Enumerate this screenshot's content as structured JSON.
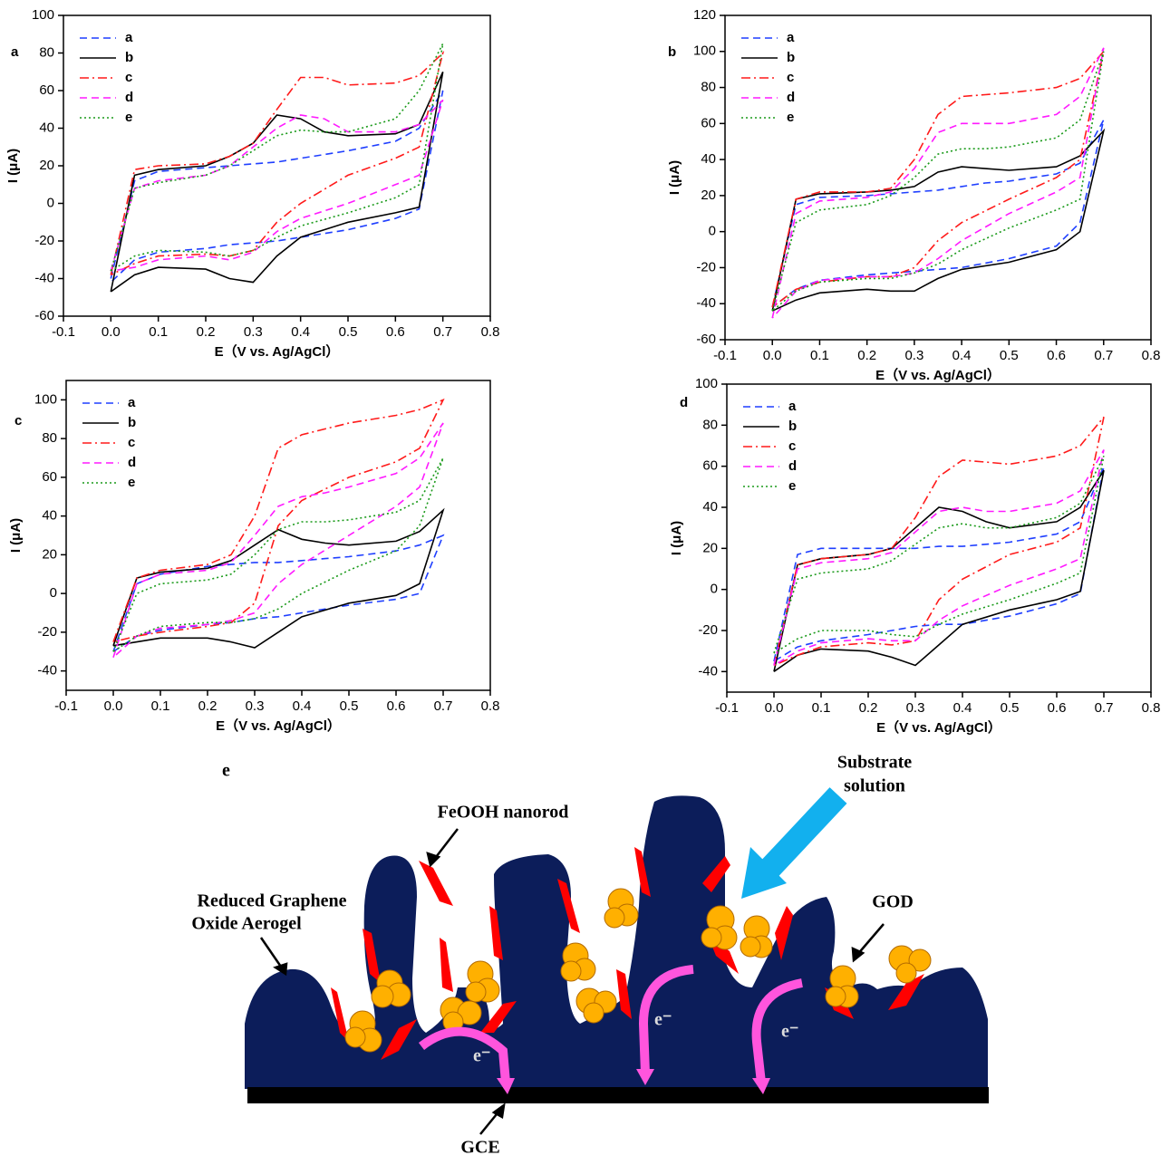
{
  "chart_data": [
    {
      "type": "line",
      "label": "a",
      "xlabel": "E（V vs. Ag/AgCl）",
      "ylabel": "I (μA)",
      "x": [
        0,
        0.05,
        0.1,
        0.2,
        0.25,
        0.3,
        0.35,
        0.4,
        0.45,
        0.5,
        0.6,
        0.65,
        0.7,
        0.65,
        0.6,
        0.5,
        0.4,
        0.35,
        0.3,
        0.25,
        0.2,
        0.1,
        0.05,
        0
      ],
      "xlim": [
        -0.1,
        0.8
      ],
      "xticks": [
        -0.1,
        {
          "value": 0,
          "label": "0.0"
        },
        0.1,
        0.2,
        0.3,
        0.4,
        0.5,
        0.6,
        0.7,
        0.8
      ],
      "ylim": [
        -60,
        100
      ],
      "yticks": [
        -60,
        -40,
        -20,
        0,
        20,
        40,
        60,
        80,
        100
      ],
      "legend": "upper-left",
      "series": [
        {
          "name": "a",
          "color": "#1f3fff",
          "dash": "dashed",
          "values": [
            -40,
            12,
            17,
            19,
            20,
            21,
            22,
            24,
            26,
            28,
            33,
            40,
            60,
            -3,
            -8,
            -14,
            -18,
            -20,
            -21,
            -22,
            -24,
            -26,
            -30,
            -42
          ]
        },
        {
          "name": "b",
          "color": "#000000",
          "dash": "solid",
          "values": [
            -47,
            15,
            18,
            20,
            25,
            32,
            47,
            45,
            38,
            36,
            37,
            42,
            70,
            -2,
            -5,
            -10,
            -18,
            -28,
            -42,
            -40,
            -35,
            -34,
            -38,
            -47
          ]
        },
        {
          "name": "c",
          "color": "#ff1a1a",
          "dash": "dashdot",
          "values": [
            -38,
            18,
            20,
            21,
            25,
            32,
            50,
            67,
            67,
            63,
            64,
            68,
            80,
            30,
            24,
            15,
            0,
            -10,
            -25,
            -28,
            -27,
            -28,
            -32,
            -38
          ]
        },
        {
          "name": "d",
          "color": "#ff1aff",
          "dash": "dashed",
          "values": [
            -36,
            8,
            12,
            15,
            20,
            30,
            40,
            47,
            45,
            38,
            38,
            42,
            55,
            15,
            10,
            0,
            -8,
            -15,
            -26,
            -30,
            -28,
            -30,
            -34,
            -36
          ]
        },
        {
          "name": "e",
          "color": "#1a9a1a",
          "dash": "dotted",
          "values": [
            -36,
            8,
            11,
            15,
            20,
            28,
            36,
            39,
            38,
            38,
            45,
            60,
            85,
            10,
            3,
            -5,
            -12,
            -18,
            -25,
            -28,
            -26,
            -25,
            -28,
            -36
          ]
        }
      ]
    },
    {
      "type": "line",
      "label": "b",
      "xlabel": "E（V vs. Ag/AgCl）",
      "ylabel": "I (μA)",
      "x": [
        0,
        0.05,
        0.1,
        0.2,
        0.25,
        0.3,
        0.35,
        0.4,
        0.45,
        0.5,
        0.6,
        0.65,
        0.7,
        0.65,
        0.6,
        0.5,
        0.4,
        0.35,
        0.3,
        0.25,
        0.2,
        0.1,
        0.05,
        0
      ],
      "xlim": [
        -0.1,
        0.8
      ],
      "xticks": [
        -0.1,
        {
          "value": 0,
          "label": "0.0"
        },
        0.1,
        0.2,
        0.3,
        0.4,
        0.5,
        0.6,
        0.7,
        0.8
      ],
      "ylim": [
        -60,
        120
      ],
      "yticks": [
        -60,
        -40,
        -20,
        0,
        20,
        40,
        60,
        80,
        100,
        120
      ],
      "legend": "upper-left",
      "series": [
        {
          "name": "a",
          "color": "#1f3fff",
          "dash": "dashed",
          "values": [
            -42,
            15,
            19,
            20,
            21,
            22,
            23,
            25,
            27,
            28,
            32,
            38,
            62,
            5,
            -8,
            -15,
            -20,
            -21,
            -22,
            -23,
            -24,
            -27,
            -32,
            -42
          ]
        },
        {
          "name": "b",
          "color": "#000000",
          "dash": "solid",
          "values": [
            -44,
            18,
            21,
            22,
            23,
            25,
            33,
            36,
            35,
            34,
            36,
            42,
            56,
            0,
            -10,
            -17,
            -21,
            -26,
            -33,
            -33,
            -32,
            -34,
            -38,
            -44
          ]
        },
        {
          "name": "c",
          "color": "#ff1a1a",
          "dash": "dashdot",
          "values": [
            -42,
            18,
            22,
            22,
            24,
            40,
            65,
            75,
            76,
            77,
            80,
            85,
            100,
            40,
            30,
            18,
            5,
            -5,
            -20,
            -25,
            -25,
            -28,
            -32,
            -42
          ]
        },
        {
          "name": "d",
          "color": "#ff1aff",
          "dash": "dashed",
          "values": [
            -48,
            10,
            17,
            19,
            22,
            35,
            55,
            60,
            60,
            60,
            65,
            75,
            102,
            30,
            22,
            10,
            -5,
            -15,
            -23,
            -25,
            -25,
            -27,
            -33,
            -48
          ]
        },
        {
          "name": "e",
          "color": "#1a9a1a",
          "dash": "dotted",
          "values": [
            -44,
            5,
            12,
            15,
            20,
            30,
            43,
            46,
            46,
            47,
            52,
            62,
            100,
            18,
            12,
            2,
            -10,
            -18,
            -23,
            -26,
            -26,
            -28,
            -33,
            -44
          ]
        }
      ]
    },
    {
      "type": "line",
      "label": "c",
      "xlabel": "E（V vs. Ag/AgCl）",
      "ylabel": "I (μA)",
      "x": [
        0,
        0.05,
        0.1,
        0.2,
        0.25,
        0.3,
        0.35,
        0.4,
        0.45,
        0.5,
        0.6,
        0.65,
        0.7,
        0.65,
        0.6,
        0.5,
        0.4,
        0.35,
        0.3,
        0.25,
        0.2,
        0.1,
        0.05,
        0
      ],
      "xlim": [
        -0.1,
        0.8
      ],
      "xticks": [
        -0.1,
        {
          "value": 0,
          "label": "0.0"
        },
        0.1,
        0.2,
        0.3,
        0.4,
        0.5,
        0.6,
        0.7,
        0.8
      ],
      "ylim": [
        -50,
        110
      ],
      "yticks": [
        -40,
        -20,
        0,
        20,
        40,
        60,
        80,
        100
      ],
      "legend": "upper-left",
      "series": [
        {
          "name": "a",
          "color": "#1f3fff",
          "dash": "dashed",
          "values": [
            -30,
            5,
            10,
            14,
            15,
            16,
            16,
            17,
            18,
            19,
            22,
            25,
            30,
            0,
            -3,
            -6,
            -10,
            -12,
            -13,
            -15,
            -16,
            -19,
            -22,
            -30
          ]
        },
        {
          "name": "b",
          "color": "#000000",
          "dash": "solid",
          "values": [
            -27,
            8,
            11,
            13,
            17,
            25,
            33,
            28,
            26,
            25,
            27,
            32,
            43,
            5,
            -1,
            -5,
            -12,
            -20,
            -28,
            -25,
            -23,
            -23,
            -25,
            -27
          ]
        },
        {
          "name": "c",
          "color": "#ff1a1a",
          "dash": "dashdot",
          "values": [
            -25,
            8,
            12,
            15,
            20,
            40,
            75,
            82,
            85,
            88,
            92,
            95,
            100,
            75,
            68,
            60,
            48,
            35,
            -5,
            -15,
            -17,
            -20,
            -22,
            -25
          ]
        },
        {
          "name": "d",
          "color": "#ff1aff",
          "dash": "dashed",
          "values": [
            -33,
            5,
            10,
            12,
            16,
            30,
            45,
            50,
            52,
            55,
            62,
            70,
            88,
            55,
            45,
            30,
            15,
            5,
            -10,
            -14,
            -16,
            -18,
            -22,
            -33
          ]
        },
        {
          "name": "e",
          "color": "#1a9a1a",
          "dash": "dotted",
          "values": [
            -30,
            0,
            5,
            7,
            10,
            20,
            33,
            37,
            37,
            38,
            42,
            48,
            70,
            35,
            22,
            12,
            0,
            -8,
            -13,
            -15,
            -15,
            -17,
            -22,
            -30
          ]
        }
      ]
    },
    {
      "type": "line",
      "label": "d",
      "xlabel": "E（V vs. Ag/AgCl）",
      "ylabel": "I (μA)",
      "x": [
        0,
        0.05,
        0.1,
        0.2,
        0.25,
        0.3,
        0.35,
        0.4,
        0.45,
        0.5,
        0.6,
        0.65,
        0.7,
        0.65,
        0.6,
        0.5,
        0.4,
        0.35,
        0.3,
        0.25,
        0.2,
        0.1,
        0.05,
        0
      ],
      "xlim": [
        -0.1,
        0.8
      ],
      "xticks": [
        -0.1,
        {
          "value": 0,
          "label": "0.0"
        },
        0.1,
        0.2,
        0.3,
        0.4,
        0.5,
        0.6,
        0.7,
        0.8
      ],
      "ylim": [
        -50,
        100
      ],
      "yticks": [
        -40,
        -20,
        0,
        20,
        40,
        60,
        80,
        100
      ],
      "legend": "upper-left",
      "series": [
        {
          "name": "a",
          "color": "#1f3fff",
          "dash": "dashed",
          "values": [
            -35,
            17,
            20,
            20,
            20,
            20,
            21,
            21,
            22,
            23,
            27,
            33,
            60,
            -2,
            -7,
            -13,
            -17,
            -17,
            -18,
            -20,
            -22,
            -25,
            -28,
            -35
          ]
        },
        {
          "name": "b",
          "color": "#000000",
          "dash": "solid",
          "values": [
            -40,
            12,
            15,
            17,
            20,
            30,
            40,
            38,
            33,
            30,
            33,
            40,
            58,
            -1,
            -5,
            -10,
            -17,
            -27,
            -37,
            -33,
            -30,
            -29,
            -32,
            -40
          ]
        },
        {
          "name": "c",
          "color": "#ff1a1a",
          "dash": "dashdot",
          "values": [
            -37,
            12,
            15,
            17,
            20,
            35,
            55,
            63,
            62,
            61,
            65,
            70,
            84,
            30,
            23,
            17,
            5,
            -5,
            -25,
            -27,
            -26,
            -28,
            -32,
            -37
          ]
        },
        {
          "name": "d",
          "color": "#ff1aff",
          "dash": "dashed",
          "values": [
            -37,
            10,
            13,
            15,
            18,
            28,
            38,
            40,
            38,
            38,
            42,
            48,
            68,
            15,
            10,
            2,
            -8,
            -15,
            -25,
            -25,
            -24,
            -26,
            -30,
            -37
          ]
        },
        {
          "name": "e",
          "color": "#1a9a1a",
          "dash": "dotted",
          "values": [
            -31,
            5,
            8,
            10,
            14,
            22,
            30,
            32,
            30,
            30,
            35,
            42,
            65,
            8,
            3,
            -5,
            -12,
            -17,
            -23,
            -22,
            -20,
            -20,
            -24,
            -31
          ]
        }
      ]
    }
  ],
  "diagram": {
    "label": "e",
    "substrate": [
      "Substrate",
      "solution"
    ],
    "nanorod": "FeOOH nanorod",
    "aerogel": [
      "Reduced Graphene",
      "Oxide Aerogel"
    ],
    "god": "GOD",
    "electrons": [
      "e⁻",
      "e⁻",
      "e⁻"
    ],
    "electrode": "GCE"
  }
}
